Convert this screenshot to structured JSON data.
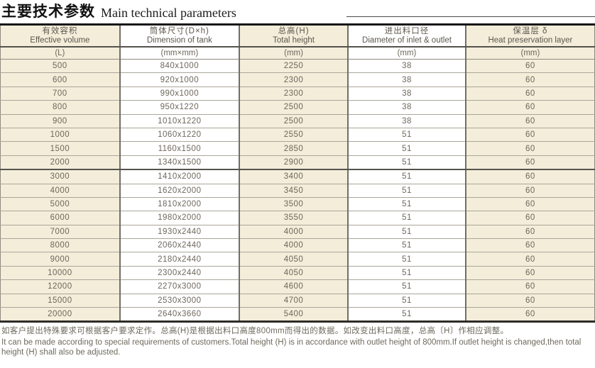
{
  "title": {
    "zh": "主要技术参数",
    "en": "Main technical parameters"
  },
  "table": {
    "columns": [
      {
        "zh": "有效容积",
        "en": "Effective volume",
        "unit": "(L)"
      },
      {
        "zh": "筒体尺寸(D×h)",
        "en": "Dimension of tank",
        "unit": "(mm×mm)"
      },
      {
        "zh": "总高(H)",
        "en": "Total height",
        "unit": "(mm)"
      },
      {
        "zh": "进出料口径",
        "en": "Diameter of inlet & outlet",
        "unit": "(mm)"
      },
      {
        "zh": "保温层 δ",
        "en": "Heat preservation layer",
        "unit": "(mm)"
      }
    ],
    "rows": [
      [
        "500",
        "840x1000",
        "2250",
        "38",
        "60"
      ],
      [
        "600",
        "920x1000",
        "2300",
        "38",
        "60"
      ],
      [
        "700",
        "990x1000",
        "2300",
        "38",
        "60"
      ],
      [
        "800",
        "950x1220",
        "2500",
        "38",
        "60"
      ],
      [
        "900",
        "1010x1220",
        "2500",
        "38",
        "60"
      ],
      [
        "1000",
        "1060x1220",
        "2550",
        "51",
        "60"
      ],
      [
        "1500",
        "1160x1500",
        "2850",
        "51",
        "60"
      ],
      [
        "2000",
        "1340x1500",
        "2900",
        "51",
        "60"
      ],
      [
        "3000",
        "1410x2000",
        "3400",
        "51",
        "60"
      ],
      [
        "4000",
        "1620x2000",
        "3450",
        "51",
        "60"
      ],
      [
        "5000",
        "1810x2000",
        "3500",
        "51",
        "60"
      ],
      [
        "6000",
        "1980x2000",
        "3550",
        "51",
        "60"
      ],
      [
        "7000",
        "1930x2440",
        "4000",
        "51",
        "60"
      ],
      [
        "8000",
        "2060x2440",
        "4000",
        "51",
        "60"
      ],
      [
        "9000",
        "2180x2440",
        "4050",
        "51",
        "60"
      ],
      [
        "10000",
        "2300x2440",
        "4050",
        "51",
        "60"
      ],
      [
        "12000",
        "2270x3000",
        "4600",
        "51",
        "60"
      ],
      [
        "15000",
        "2530x3000",
        "4700",
        "51",
        "60"
      ],
      [
        "20000",
        "2640x3660",
        "5400",
        "51",
        "60"
      ]
    ],
    "section_break_after_row": 7,
    "column_widths_pct": [
      20.1,
      20.1,
      18.3,
      19.8,
      21.7
    ]
  },
  "notes": {
    "zh": "如客户提出特殊要求可根据客户要求定作。总高(H)是根据出料口高度800mm而得出的数据。如改变出料口高度，总高〔H〕作相应调整。",
    "en": "It can be made according to special requirements of customers.Total height (H) is in accordance with outlet height of 800mm.If outlet height is changed,then total height (H) shall also be adjusted."
  },
  "colors": {
    "beige_column_bg": "#f3edda",
    "white_column_bg": "#ffffff",
    "table_text": "#6e675c",
    "heavy_border": "#151515"
  }
}
